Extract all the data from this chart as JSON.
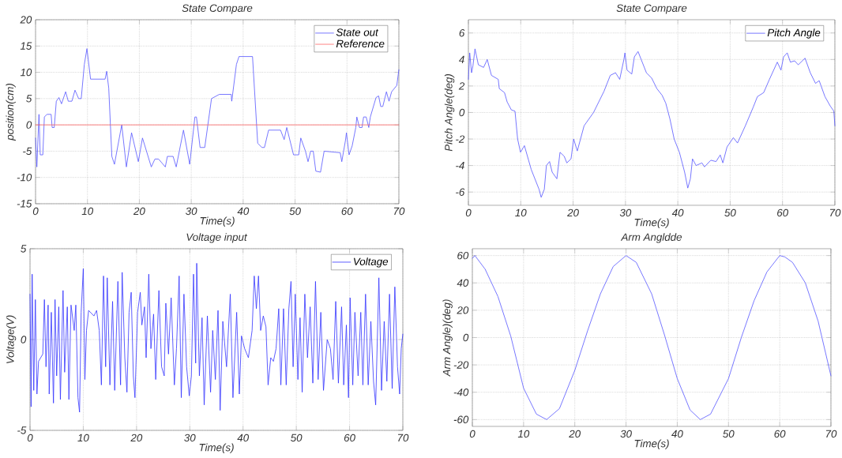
{
  "chart_data": [
    {
      "type": "line",
      "title": "State Compare",
      "xlabel": "Time(s)",
      "ylabel": "position(cm)",
      "xlim": [
        0,
        70
      ],
      "ylim": [
        -15,
        20
      ],
      "xticks": [
        0,
        10,
        20,
        30,
        40,
        50,
        60,
        70
      ],
      "yticks": [
        -15,
        -10,
        -5,
        0,
        5,
        10,
        15,
        20
      ],
      "grid": true,
      "legend": "top right",
      "series": [
        {
          "name": "State out",
          "color": "#5555ff",
          "x": [
            0,
            0.25,
            0.66,
            0.9,
            1.4,
            1.7,
            2.2,
            3,
            3.2,
            3.6,
            4,
            4.5,
            5,
            5.8,
            6.3,
            7,
            7.6,
            8.3,
            8.8,
            9.4,
            9.9,
            10.6,
            13.4,
            13.7,
            14.1,
            14.7,
            15.2,
            16.6,
            17.5,
            18.5,
            19.8,
            20.6,
            22.3,
            23,
            23.7,
            25,
            25.4,
            26.5,
            27.1,
            28.5,
            29.7,
            30.7,
            31,
            31.7,
            32.6,
            33.9,
            35.4,
            37.7,
            37.8,
            38.7,
            39.2,
            41.8,
            42.8,
            43.6,
            44.1,
            44.9,
            47.2,
            47.9,
            48.4,
            49.7,
            50.7,
            51.1,
            52,
            52.5,
            53,
            53.5,
            54,
            54.9,
            55.6,
            58.7,
            59,
            59.7,
            59.9,
            60.4,
            61,
            61.7,
            61.9,
            62.4,
            62.9,
            63.2,
            63.7,
            64.2,
            64.5,
            65.6,
            66.1,
            66.5,
            66.9,
            67.6,
            68.1,
            68.6,
            69.6,
            70
          ],
          "values": [
            -2.5,
            -8,
            2,
            -5.7,
            -5.7,
            1.5,
            2,
            2,
            -0.5,
            -0.5,
            4.5,
            5.2,
            4,
            6.3,
            4.5,
            4.5,
            6.6,
            5,
            5,
            11.5,
            14.5,
            8.7,
            8.7,
            10.2,
            7,
            -6,
            -7.5,
            0,
            -8,
            -1.5,
            -7,
            -2.5,
            -8,
            -6.5,
            -6.5,
            -8,
            -6,
            -6,
            -8,
            -1,
            -7.5,
            1.5,
            1.5,
            -4.3,
            -4.3,
            5,
            5.8,
            5.8,
            4.5,
            11.5,
            13,
            13,
            -3.5,
            -4.3,
            -4.3,
            -1,
            -1,
            -2.8,
            -0.5,
            -5.7,
            -5.7,
            -2.5,
            -5,
            -7,
            -5,
            -5,
            -8.8,
            -9,
            -5,
            -5.3,
            -7,
            -3,
            -1.5,
            -5.7,
            -4,
            -0.5,
            1.5,
            -0.5,
            -0.5,
            1.5,
            1.5,
            -0.5,
            1.5,
            5.2,
            5.5,
            3.5,
            3.5,
            6.3,
            4.5,
            6.3,
            7.5,
            10.5
          ]
        },
        {
          "name": "Reference",
          "color": "#ff6666",
          "x": [
            0,
            70
          ],
          "values": [
            0,
            0
          ]
        }
      ]
    },
    {
      "type": "line",
      "title": "State Compare",
      "xlabel": "Time(s)",
      "ylabel": "Pitch Angle(deg)",
      "xlim": [
        0,
        70
      ],
      "ylim": [
        -7,
        7
      ],
      "xticks": [
        0,
        10,
        20,
        30,
        40,
        50,
        60,
        70
      ],
      "yticks": [
        -6,
        -4,
        -2,
        0,
        2,
        4,
        6
      ],
      "grid": true,
      "legend": "top right",
      "series": [
        {
          "name": "Pitch Angle",
          "color": "#5555ff",
          "x": [
            0,
            0.25,
            0.6,
            0.86,
            1.26,
            1.9,
            2.9,
            3.6,
            4.4,
            5.7,
            5.9,
            6.9,
            7.4,
            8.2,
            8.9,
            9.4,
            9.95,
            10.7,
            12,
            13.5,
            13.9,
            14.5,
            14.9,
            15.5,
            16,
            16.9,
            17.5,
            18.3,
            18.8,
            19.6,
            20.1,
            20.8,
            22.1,
            23.9,
            25.9,
            27.1,
            28.1,
            28.9,
            29.7,
            29.9,
            30.3,
            31.2,
            31.7,
            32.4,
            33.2,
            34,
            35,
            36,
            37,
            37.7,
            38.5,
            39.3,
            40.3,
            41.3,
            41.9,
            42.4,
            42.8,
            43.5,
            44.6,
            45.1,
            46.3,
            47.3,
            48.1,
            48.6,
            49.4,
            50.6,
            51.4,
            52.9,
            54.4,
            55.2,
            56.4,
            57.5,
            59,
            59.7,
            60.2,
            60.9,
            61.5,
            62.3,
            63,
            64.3,
            65.3,
            66.3,
            67,
            68.1,
            69.1,
            69.8,
            70
          ],
          "values": [
            2.5,
            4.5,
            3,
            3.5,
            4.8,
            3.6,
            3.4,
            4,
            2.8,
            2.5,
            1.8,
            1.5,
            0.8,
            0.2,
            0.1,
            -2,
            -3,
            -2.5,
            -4.3,
            -5.8,
            -6.4,
            -5.8,
            -4,
            -3.7,
            -4.5,
            -5,
            -3,
            -3.3,
            -3.8,
            -3.5,
            -2,
            -2.9,
            -1,
            0,
            1.6,
            2.8,
            3,
            2.5,
            4,
            4.5,
            3.2,
            2.9,
            4.2,
            4.6,
            3.8,
            3,
            2.6,
            1.8,
            1.3,
            0.7,
            -0.5,
            -2,
            -3,
            -4.5,
            -5.7,
            -5,
            -3.5,
            -4,
            -3.8,
            -4.1,
            -3.6,
            -3.7,
            -3.2,
            -3.8,
            -2.6,
            -1.9,
            -2.3,
            -1,
            0.4,
            1.2,
            1.5,
            2.5,
            3.8,
            3.2,
            4.2,
            4.5,
            3.8,
            3.9,
            3.6,
            4.1,
            3,
            2.2,
            2.4,
            1.2,
            0.5,
            0.1,
            -1
          ]
        }
      ]
    },
    {
      "type": "line",
      "title": "Voltage input",
      "xlabel": "Time(s)",
      "ylabel": "Voltage(V)",
      "xlim": [
        0,
        70
      ],
      "ylim": [
        -5,
        5
      ],
      "xticks": [
        0,
        10,
        20,
        30,
        40,
        50,
        60,
        70
      ],
      "yticks": [
        -5,
        0,
        5
      ],
      "grid": true,
      "legend": "top right",
      "series": [
        {
          "name": "Voltage",
          "color": "#3333ff",
          "x": [
            0,
            0.2,
            0.4,
            0.7,
            1,
            1.3,
            1.6,
            2,
            2.4,
            2.7,
            3,
            3.4,
            3.6,
            4,
            4.4,
            4.7,
            5,
            5.4,
            5.7,
            6.2,
            6.5,
            7,
            7.3,
            7.7,
            8.3,
            8.6,
            9,
            9.3,
            9.6,
            10,
            10.3,
            10.6,
            11,
            12,
            12.5,
            13,
            13.4,
            13.8,
            14.2,
            14.5,
            15,
            15.5,
            15.9,
            16.5,
            17,
            17.3,
            17.8,
            18.2,
            18.6,
            19,
            19.4,
            19.7,
            20.2,
            20.7,
            21,
            21.5,
            21.8,
            22.3,
            22.7,
            23.2,
            23.6,
            24.2,
            24.7,
            25.2,
            25.5,
            26,
            26.5,
            27.1,
            27.5,
            28,
            28.4,
            28.9,
            29.4,
            29.9,
            30.3,
            30.7,
            31.1,
            31.3,
            31.8,
            32.3,
            32.7,
            33.3,
            33.9,
            34.3,
            34.8,
            35.3,
            35.7,
            36.2,
            36.9,
            37.6,
            38.1,
            38.8,
            39.3,
            39.7,
            40.3,
            41,
            41.7,
            42.1,
            42.5,
            42.9,
            43.3,
            43.8,
            44.3,
            44.7,
            45.2,
            45.7,
            46.2,
            46.7,
            47.1,
            47.6,
            48.1,
            48.6,
            49,
            49.4,
            49.8,
            50.3,
            50.7,
            51.1,
            51.6,
            52.1,
            52.6,
            53.1,
            53.6,
            54.1,
            54.6,
            55.1,
            55.8,
            56.4,
            56.9,
            57.4,
            57.9,
            58.5,
            58.9,
            59.4,
            59.8,
            60.1,
            60.6,
            61,
            61.6,
            62.1,
            62.5,
            63,
            63.5,
            64,
            64.5,
            64.9,
            65.5,
            66,
            66.5,
            67,
            67.5,
            68,
            68.5,
            69,
            69.4,
            69.7,
            70
          ],
          "values": [
            2.5,
            -3.7,
            3.6,
            -2.8,
            2.2,
            -3,
            -1.2,
            -1,
            -0.8,
            2.2,
            -1.5,
            1.9,
            -3,
            1.5,
            -3.5,
            2.2,
            -2,
            1.8,
            -3.3,
            2.7,
            -1.8,
            1.8,
            -3.3,
            1.9,
            0.5,
            1.9,
            -3.2,
            -4,
            1.5,
            3.9,
            -2.2,
            0.5,
            1.6,
            1.3,
            1.6,
            0.5,
            -2.5,
            3.5,
            -1.5,
            3.4,
            -2.5,
            2.1,
            -2.8,
            3.2,
            -2.5,
            3.7,
            -1,
            -2.9,
            1.5,
            2.6,
            -2,
            -3.2,
            1.5,
            2.6,
            0.8,
            1.8,
            -1,
            3.6,
            -0.5,
            1.4,
            -2.2,
            2.7,
            -1.5,
            -2,
            2,
            -0.8,
            2.3,
            -2.5,
            -0.5,
            3.5,
            -3.2,
            2.5,
            -1.5,
            -3.1,
            -2,
            3.6,
            -1.3,
            4.2,
            -2,
            1.2,
            -3.6,
            1.3,
            -2.9,
            0.5,
            -2.2,
            1.6,
            -3.9,
            1,
            -1.5,
            2.5,
            -3.2,
            1.5,
            -3,
            0.2,
            -0.5,
            -1,
            0.5,
            3.5,
            1.7,
            3.5,
            0.5,
            1.3,
            0.7,
            -2.5,
            -1,
            -1.2,
            -0.5,
            1.7,
            -2.5,
            1.7,
            -2.5,
            1.7,
            3.2,
            -1.5,
            2.5,
            -2.2,
            1.2,
            -2.9,
            2.5,
            -1,
            1.8,
            -2.4,
            3.2,
            -2.2,
            1.5,
            -2.8,
            0,
            -0.5,
            -2.2,
            2.1,
            -2.4,
            1.8,
            -2.5,
            0.8,
            -3.2,
            2.3,
            -2.5,
            1.5,
            -2,
            1.5,
            -2.5,
            2.5,
            -2.5,
            1,
            -2.3,
            -3.6,
            3.4,
            -2.8,
            1,
            -2.3,
            2.5,
            -2.7,
            2.9,
            -1.5,
            -3,
            -0.5,
            0.3
          ]
        }
      ]
    },
    {
      "type": "line",
      "title": "Arm Angldde",
      "xlabel": "Time(s)",
      "ylabel": "Arm Angle)(deg)",
      "xlim": [
        0,
        70
      ],
      "ylim": [
        -65,
        65
      ],
      "xticks": [
        0,
        10,
        20,
        30,
        40,
        50,
        60,
        70
      ],
      "yticks": [
        -60,
        -40,
        -20,
        0,
        20,
        40,
        60
      ],
      "grid": true,
      "series": [
        {
          "color": "#5555ff",
          "x": [
            0,
            0.5,
            2.5,
            5,
            7.5,
            10,
            12.5,
            14.5,
            17,
            20,
            22.5,
            25,
            27.5,
            30,
            32,
            35,
            37.5,
            40,
            42.5,
            44.5,
            46.5,
            50,
            52.5,
            55,
            57.5,
            60,
            61,
            62.5,
            65,
            67.5,
            70
          ],
          "values": [
            58,
            60,
            50,
            30,
            1,
            -37,
            -56,
            -60,
            -52,
            -24,
            5,
            32,
            52,
            60,
            55,
            32,
            2,
            -30,
            -53,
            -60,
            -56,
            -30,
            0,
            27,
            48,
            60,
            59,
            55,
            40,
            12,
            -28
          ]
        }
      ]
    }
  ]
}
